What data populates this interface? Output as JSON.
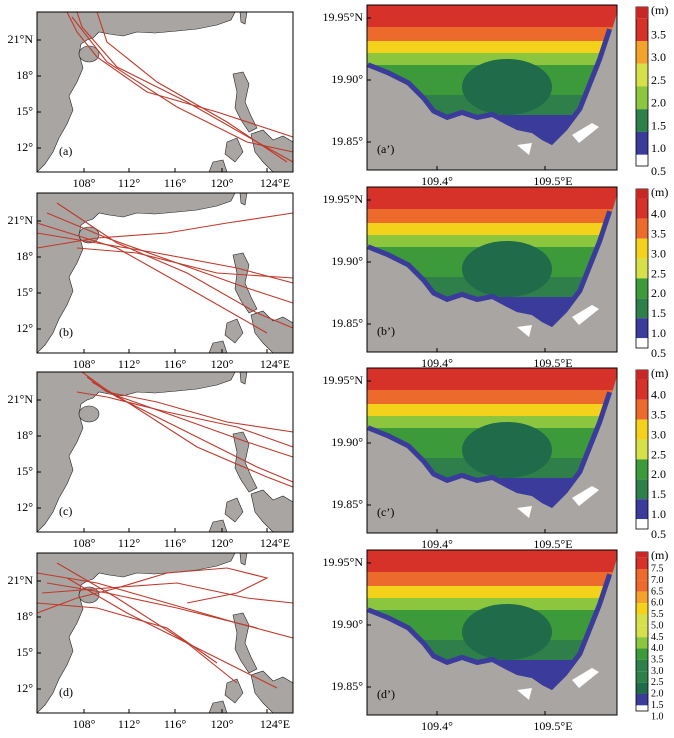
{
  "panels_left": [
    {
      "label": "(a)",
      "yticks": [
        "21°N",
        "18°",
        "15°",
        "12°"
      ],
      "xticks": [
        "108°",
        "112°",
        "116°",
        "120°",
        "124°E"
      ]
    },
    {
      "label": "(b)",
      "yticks": [
        "21°N",
        "18°",
        "15°",
        "12°"
      ],
      "xticks": [
        "108°",
        "112°",
        "116°",
        "120°",
        "124°E"
      ]
    },
    {
      "label": "(c)",
      "yticks": [
        "21°N",
        "18°",
        "15°",
        "12°"
      ],
      "xticks": [
        "108°",
        "112°",
        "116°",
        "120°",
        "124°E"
      ]
    },
    {
      "label": "(d)",
      "yticks": [
        "21°N",
        "18°",
        "15°",
        "12°"
      ],
      "xticks": [
        "108°",
        "112°",
        "116°",
        "120°",
        "124°E"
      ]
    }
  ],
  "panels_right": [
    {
      "label": "(a’)",
      "yticks": [
        "19.95°N",
        "19.90°",
        "19.85°"
      ],
      "xticks": [
        "109.4°",
        "109.5°E"
      ],
      "colorbar": {
        "unit": "(m)",
        "labels": [
          "3.5",
          "3.0",
          "2.5",
          "2.0",
          "1.5",
          "1.0",
          "0.5"
        ]
      }
    },
    {
      "label": "(b’)",
      "yticks": [
        "19.95°N",
        "19.90°",
        "19.85°"
      ],
      "xticks": [
        "109.4°",
        "109.5°E"
      ],
      "colorbar": {
        "unit": "(m)",
        "labels": [
          "4.0",
          "3.5",
          "3.0",
          "2.5",
          "2.0",
          "1.5",
          "1.0",
          "0.5"
        ]
      }
    },
    {
      "label": "(c’)",
      "yticks": [
        "19.95°N",
        "19.90°",
        "19.85°"
      ],
      "xticks": [
        "109.4°",
        "109.5°E"
      ],
      "colorbar": {
        "unit": "(m)",
        "labels": [
          "4.0",
          "3.5",
          "3.0",
          "2.5",
          "2.0",
          "1.5",
          "1.0",
          "0.5"
        ]
      }
    },
    {
      "label": "(d’)",
      "yticks": [
        "19.95°N",
        "19.90°",
        "19.85°"
      ],
      "xticks": [
        "109.4°",
        "109.5°E"
      ],
      "colorbar": {
        "unit": "(m)",
        "labels": [
          "7.5",
          "7.0",
          "6.5",
          "6.0",
          "5.5",
          "5.0",
          "4.5",
          "4.0",
          "3.5",
          "3.0",
          "2.5",
          "2.0",
          "1.5",
          "1.0"
        ]
      }
    }
  ]
}
